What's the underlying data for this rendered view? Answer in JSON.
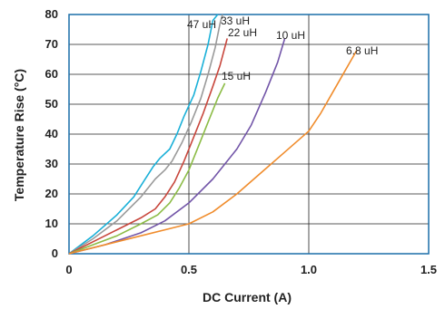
{
  "chart_data": {
    "type": "line",
    "title": "",
    "xlabel": "DC Current (A)",
    "ylabel": "Temperature Rise (°C)",
    "xlim": [
      0,
      1.5
    ],
    "ylim": [
      0,
      80
    ],
    "x_ticks": [
      0,
      0.5,
      1.0,
      1.5
    ],
    "x_tick_labels": [
      "0",
      "0.5",
      "1.0",
      "1.5"
    ],
    "y_ticks": [
      0,
      10,
      20,
      30,
      40,
      50,
      60,
      70,
      80
    ],
    "y_tick_labels": [
      "0",
      "10",
      "20",
      "30",
      "40",
      "50",
      "60",
      "70",
      "80"
    ],
    "grid": true,
    "legend": "inline labels",
    "series": [
      {
        "name": "47 uH",
        "color": "#1ab0d8",
        "points": [
          [
            0,
            0
          ],
          [
            0.1,
            6
          ],
          [
            0.2,
            13
          ],
          [
            0.27,
            19
          ],
          [
            0.31,
            24
          ],
          [
            0.35,
            29
          ],
          [
            0.38,
            32
          ],
          [
            0.42,
            35
          ],
          [
            0.45,
            40
          ],
          [
            0.48,
            46
          ],
          [
            0.52,
            53
          ],
          [
            0.55,
            61
          ],
          [
            0.58,
            70
          ],
          [
            0.6,
            78
          ],
          [
            0.62,
            80
          ]
        ]
      },
      {
        "name": "33 uH",
        "color": "#9a9a9a",
        "points": [
          [
            0,
            0
          ],
          [
            0.1,
            5
          ],
          [
            0.2,
            11
          ],
          [
            0.3,
            19
          ],
          [
            0.36,
            25
          ],
          [
            0.4,
            28
          ],
          [
            0.43,
            31
          ],
          [
            0.47,
            37
          ],
          [
            0.51,
            44
          ],
          [
            0.55,
            52
          ],
          [
            0.58,
            60
          ],
          [
            0.61,
            69
          ],
          [
            0.63,
            77
          ],
          [
            0.64,
            80
          ]
        ]
      },
      {
        "name": "22 uH",
        "color": "#c8463c",
        "points": [
          [
            0,
            0
          ],
          [
            0.1,
            4
          ],
          [
            0.2,
            8
          ],
          [
            0.3,
            12
          ],
          [
            0.36,
            15
          ],
          [
            0.4,
            19
          ],
          [
            0.44,
            24
          ],
          [
            0.48,
            31
          ],
          [
            0.52,
            39
          ],
          [
            0.56,
            47
          ],
          [
            0.6,
            56
          ],
          [
            0.63,
            63
          ],
          [
            0.66,
            72
          ]
        ]
      },
      {
        "name": "15 uH",
        "color": "#8cbc46",
        "points": [
          [
            0,
            0
          ],
          [
            0.1,
            3
          ],
          [
            0.2,
            6
          ],
          [
            0.3,
            10
          ],
          [
            0.37,
            13
          ],
          [
            0.42,
            17
          ],
          [
            0.46,
            22
          ],
          [
            0.5,
            28
          ],
          [
            0.54,
            36
          ],
          [
            0.58,
            44
          ],
          [
            0.62,
            52
          ],
          [
            0.65,
            57
          ]
        ]
      },
      {
        "name": "10 uH",
        "color": "#7255a8",
        "points": [
          [
            0,
            0
          ],
          [
            0.15,
            3
          ],
          [
            0.3,
            7
          ],
          [
            0.4,
            11
          ],
          [
            0.5,
            17
          ],
          [
            0.6,
            25
          ],
          [
            0.7,
            35
          ],
          [
            0.76,
            43
          ],
          [
            0.82,
            54
          ],
          [
            0.87,
            64
          ],
          [
            0.9,
            72
          ]
        ]
      },
      {
        "name": "6.8 uH",
        "color": "#f08c2c",
        "points": [
          [
            0,
            0
          ],
          [
            0.2,
            4
          ],
          [
            0.4,
            8
          ],
          [
            0.5,
            10
          ],
          [
            0.6,
            14
          ],
          [
            0.7,
            20
          ],
          [
            0.8,
            27
          ],
          [
            0.9,
            34
          ],
          [
            1.0,
            41
          ],
          [
            1.05,
            47
          ],
          [
            1.1,
            54
          ],
          [
            1.15,
            61
          ],
          [
            1.2,
            68
          ]
        ]
      }
    ],
    "colors": {
      "plot_border": "#1a6ea8",
      "grid": "#222222"
    }
  }
}
